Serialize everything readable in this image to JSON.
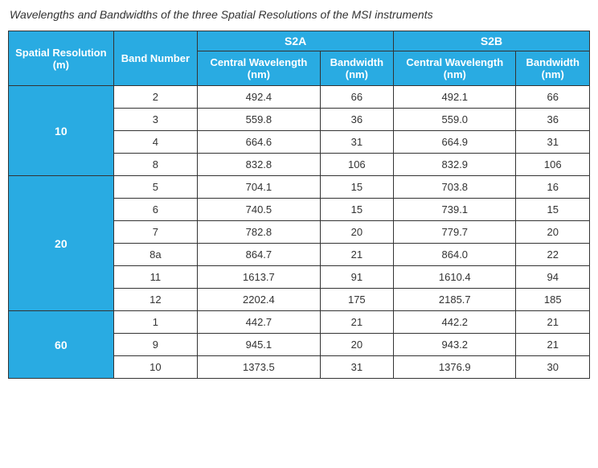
{
  "caption": "Wavelengths and Bandwidths of the three Spatial Resolutions of the MSI instruments",
  "table": {
    "type": "table",
    "header_bg": "#29abe2",
    "header_fg": "#ffffff",
    "border_color": "#333333",
    "font_family": "Segoe UI",
    "caption_fontsize": 14,
    "header_fontsize": 13,
    "cell_fontsize": 13,
    "columns": {
      "spatial_res": "Spatial Resolution (m)",
      "band_number": "Band Number",
      "s2a": "S2A",
      "s2b": "S2B",
      "central_wavelength": "Central Wavelength (nm)",
      "bandwidth": "Bandwidth (nm)"
    },
    "groups": [
      {
        "resolution": "10",
        "rows": [
          {
            "band": "2",
            "s2a_cw": "492.4",
            "s2a_bw": "66",
            "s2b_cw": "492.1",
            "s2b_bw": "66"
          },
          {
            "band": "3",
            "s2a_cw": "559.8",
            "s2a_bw": "36",
            "s2b_cw": "559.0",
            "s2b_bw": "36"
          },
          {
            "band": "4",
            "s2a_cw": "664.6",
            "s2a_bw": "31",
            "s2b_cw": "664.9",
            "s2b_bw": "31"
          },
          {
            "band": "8",
            "s2a_cw": "832.8",
            "s2a_bw": "106",
            "s2b_cw": "832.9",
            "s2b_bw": "106"
          }
        ]
      },
      {
        "resolution": "20",
        "rows": [
          {
            "band": "5",
            "s2a_cw": "704.1",
            "s2a_bw": "15",
            "s2b_cw": "703.8",
            "s2b_bw": "16"
          },
          {
            "band": "6",
            "s2a_cw": "740.5",
            "s2a_bw": "15",
            "s2b_cw": "739.1",
            "s2b_bw": "15"
          },
          {
            "band": "7",
            "s2a_cw": "782.8",
            "s2a_bw": "20",
            "s2b_cw": "779.7",
            "s2b_bw": "20"
          },
          {
            "band": "8a",
            "s2a_cw": "864.7",
            "s2a_bw": "21",
            "s2b_cw": "864.0",
            "s2b_bw": "22"
          },
          {
            "band": "11",
            "s2a_cw": "1613.7",
            "s2a_bw": "91",
            "s2b_cw": "1610.4",
            "s2b_bw": "94"
          },
          {
            "band": "12",
            "s2a_cw": "2202.4",
            "s2a_bw": "175",
            "s2b_cw": "2185.7",
            "s2b_bw": "185"
          }
        ]
      },
      {
        "resolution": "60",
        "rows": [
          {
            "band": "1",
            "s2a_cw": "442.7",
            "s2a_bw": "21",
            "s2b_cw": "442.2",
            "s2b_bw": "21"
          },
          {
            "band": "9",
            "s2a_cw": "945.1",
            "s2a_bw": "20",
            "s2b_cw": "943.2",
            "s2b_bw": "21"
          },
          {
            "band": "10",
            "s2a_cw": "1373.5",
            "s2a_bw": "31",
            "s2b_cw": "1376.9",
            "s2b_bw": "30"
          }
        ]
      }
    ]
  }
}
